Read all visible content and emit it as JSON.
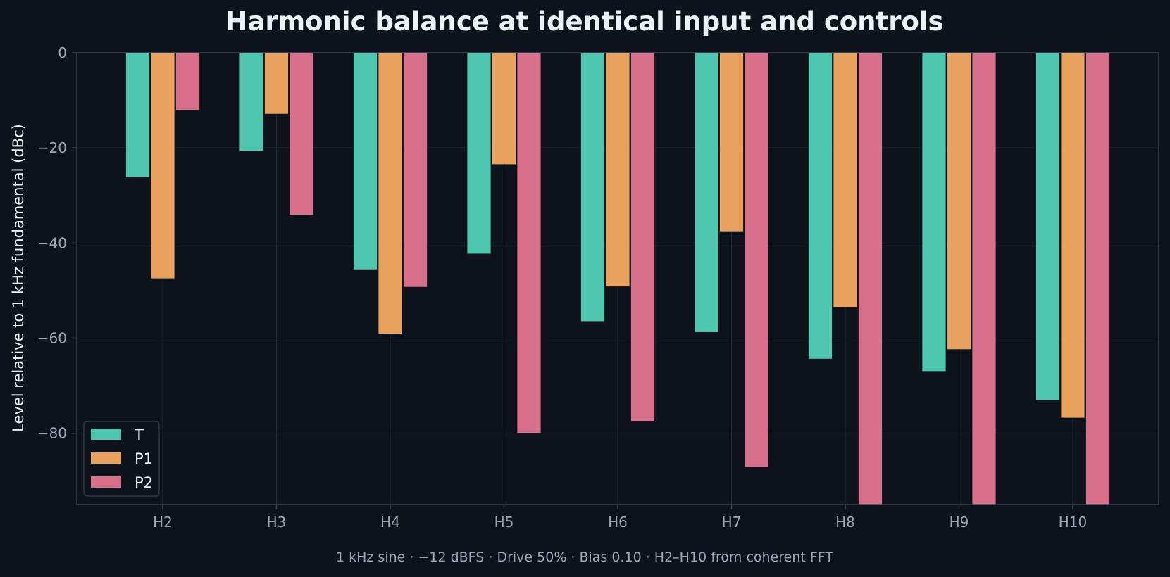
{
  "chart_data": {
    "type": "bar",
    "title": "Harmonic balance at identical input and controls",
    "subtitle": "1 kHz sine · −12 dBFS · Drive 50% · Bias 0.10 · H2–H10 from coherent FFT",
    "xlabel": "",
    "ylabel": "Level relative to 1 kHz fundamental (dBc)",
    "ylim": [
      -95,
      0
    ],
    "yticks": [
      0,
      -20,
      -40,
      -60,
      -80
    ],
    "ytick_labels": [
      "0",
      "−20",
      "−40",
      "−60",
      "−80"
    ],
    "grid": true,
    "legend_position": "bottom-left",
    "categories": [
      "H2",
      "H3",
      "H4",
      "H5",
      "H6",
      "H7",
      "H8",
      "H9",
      "H10"
    ],
    "series": [
      {
        "name": "T",
        "color": "#4fc6b0",
        "values": [
          -26.2,
          -20.7,
          -45.6,
          -42.3,
          -56.5,
          -58.8,
          -64.4,
          -67.0,
          -73.1
        ]
      },
      {
        "name": "P1",
        "color": "#e8a25e",
        "values": [
          -47.5,
          -12.9,
          -59.1,
          -23.5,
          -49.2,
          -37.6,
          -53.6,
          -62.4,
          -76.8
        ]
      },
      {
        "name": "P2",
        "color": "#d6708b",
        "values": [
          -12.1,
          -34.1,
          -49.3,
          -80.0,
          -77.6,
          -87.2,
          -95.0,
          -95.0,
          -95.0
        ]
      }
    ]
  },
  "colors": {
    "background": "#0e131b",
    "grid": "#232c3a",
    "axis": "#3e4858",
    "text_primary": "#eef2f8",
    "text_secondary": "#9aa6b6"
  }
}
